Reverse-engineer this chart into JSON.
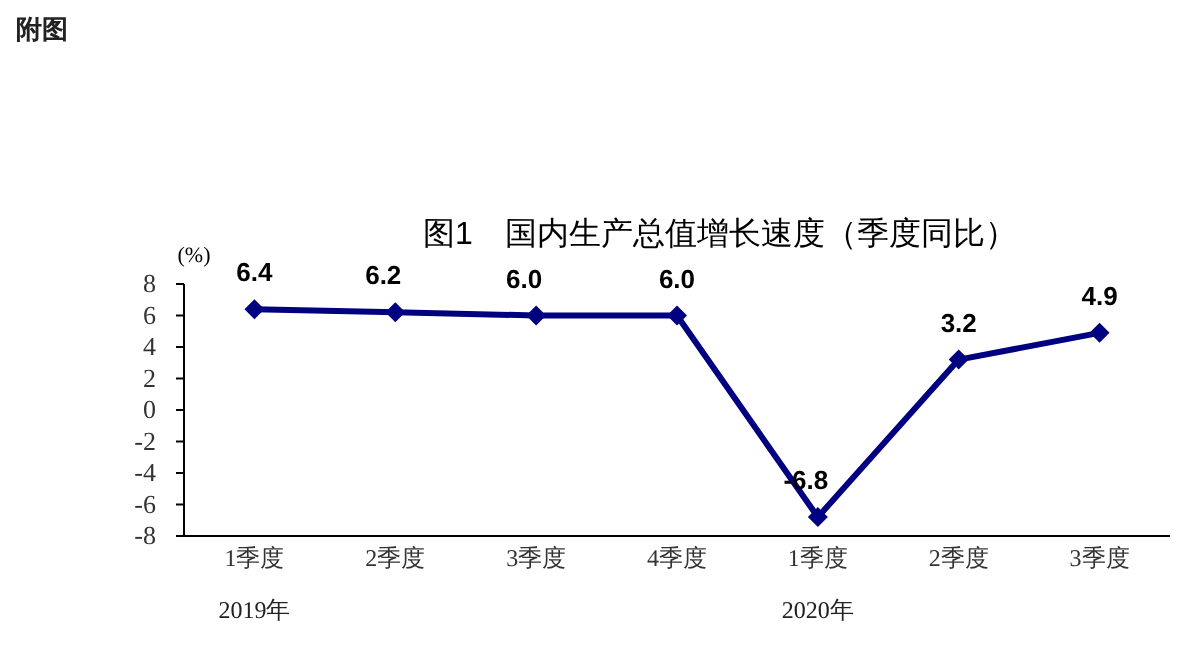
{
  "chart_data": {
    "type": "line",
    "title": "图1　国内生产总值增长速度（季度同比）",
    "ylabel": "(%)",
    "annotations": [
      "附图",
      "2019年",
      "2020年"
    ],
    "categories": [
      "1季度",
      "2季度",
      "3季度",
      "4季度",
      "1季度",
      "2季度",
      "3季度"
    ],
    "series": [
      {
        "color": "#000080",
        "values": [
          6.4,
          6.2,
          6.0,
          6.0,
          -6.8,
          3.2,
          4.9
        ],
        "value_labels": [
          "6.4",
          "6.2",
          "6.0",
          "6.0",
          "-6.8",
          "3.2",
          "4.9"
        ]
      }
    ],
    "marker": "diamond",
    "line_style": "solid",
    "ylim": [
      -8,
      8
    ],
    "yticks": [
      -8,
      -6,
      -4,
      -2,
      0,
      2,
      4,
      6,
      8
    ]
  }
}
